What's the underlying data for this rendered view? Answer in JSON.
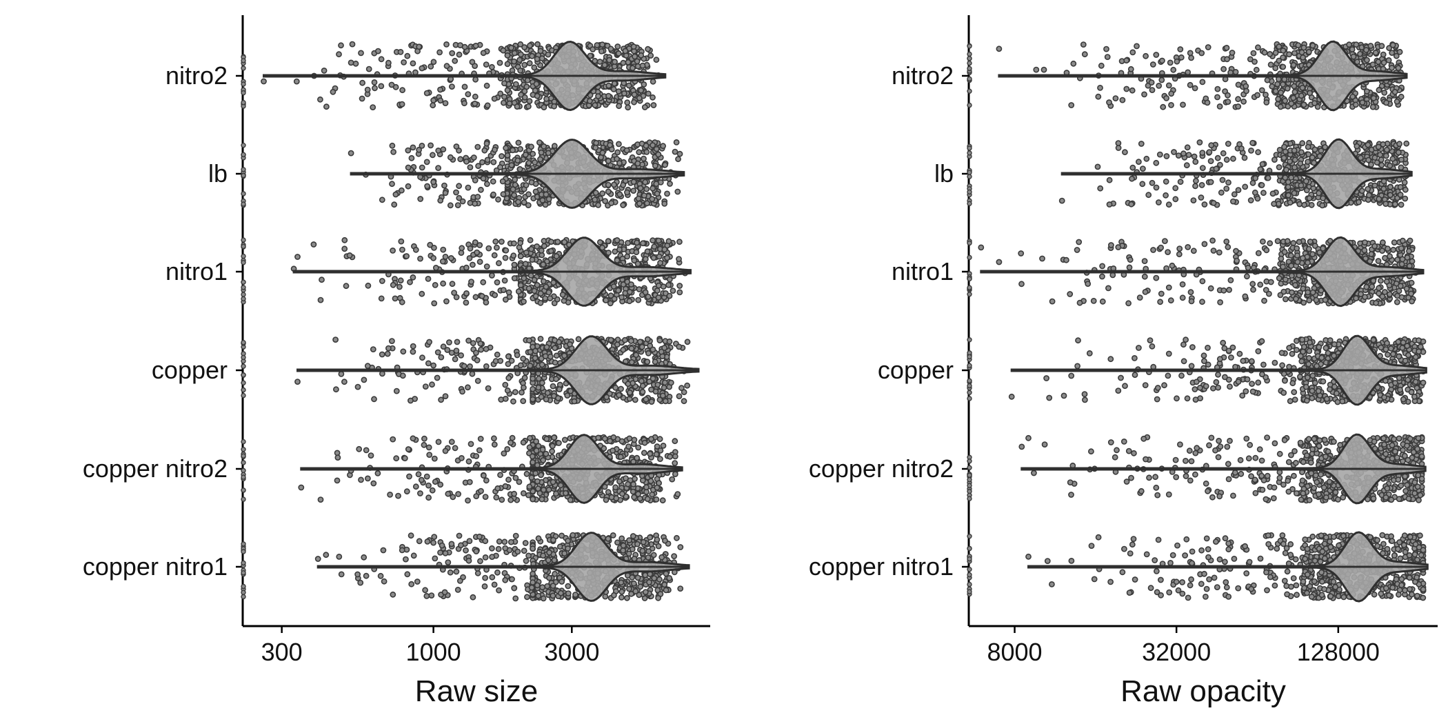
{
  "colors": {
    "violin_fill": "#a6a6a6",
    "violin_stroke": "#2f2f2f",
    "point_fill": "#8c8c8c",
    "point_stroke": "#3a3a3a",
    "axis": "#000000"
  },
  "chart_data": [
    {
      "type": "violin-jitter",
      "orientation": "horizontal",
      "xlabel": "Raw size",
      "xscale": "log",
      "xlim": [
        220,
        9000
      ],
      "xticks": [
        {
          "value": 300,
          "label": "300"
        },
        {
          "value": 1000,
          "label": "1000"
        },
        {
          "value": 3000,
          "label": "3000"
        }
      ],
      "categories": [
        "nitro2",
        "lb",
        "nitro1",
        "copper",
        "copper nitro2",
        "copper nitro1"
      ],
      "groups": [
        {
          "name": "nitro2",
          "min": 260,
          "max": 6300,
          "median": 2950,
          "body_low": 1800,
          "body_high": 6000,
          "outliers": [
            260,
            420,
            480,
            520,
            640,
            700,
            850,
            950,
            1100
          ]
        },
        {
          "name": "lb",
          "min": 520,
          "max": 7300,
          "median": 3000,
          "body_low": 1800,
          "body_high": 7100,
          "outliers": [
            520,
            850,
            950,
            1000,
            1100,
            1200,
            1300
          ]
        },
        {
          "name": "nitro1",
          "min": 330,
          "max": 7700,
          "median": 3300,
          "body_low": 2000,
          "body_high": 7400,
          "outliers": [
            330,
            340,
            700,
            780,
            850,
            1000,
            1100,
            1300
          ]
        },
        {
          "name": "copper",
          "min": 340,
          "max": 8200,
          "median": 3500,
          "body_low": 2200,
          "body_high": 7600,
          "outliers": [
            340,
            620,
            700,
            750,
            850,
            1000,
            1100,
            1200
          ]
        },
        {
          "name": "copper nitro2",
          "min": 350,
          "max": 7200,
          "median": 3300,
          "body_low": 2200,
          "body_high": 7000,
          "outliers": [
            350,
            520,
            850,
            900,
            950,
            1100,
            1250
          ]
        },
        {
          "name": "copper nitro1",
          "min": 400,
          "max": 7600,
          "median": 3500,
          "body_low": 2200,
          "body_high": 7300,
          "outliers": [
            400,
            560,
            780,
            880,
            1000,
            1100,
            1200
          ]
        }
      ]
    },
    {
      "type": "violin-jitter",
      "orientation": "horizontal",
      "xlabel": "Raw opacity",
      "xscale": "log",
      "xlim": [
        5400,
        300000
      ],
      "xticks": [
        {
          "value": 8000,
          "label": "8000"
        },
        {
          "value": 32000,
          "label": "32000"
        },
        {
          "value": 128000,
          "label": "128000"
        }
      ],
      "categories": [
        "nitro2",
        "lb",
        "nitro1",
        "copper",
        "copper nitro2",
        "copper nitro1"
      ],
      "groups": [
        {
          "name": "nitro2",
          "min": 7000,
          "max": 230000,
          "median": 122000,
          "body_low": 70000,
          "body_high": 220000,
          "outliers": [
            7000,
            14000,
            19000,
            22000,
            26000,
            30000,
            36000,
            42000
          ]
        },
        {
          "name": "lb",
          "min": 12000,
          "max": 240000,
          "median": 128000,
          "body_low": 75000,
          "body_high": 230000,
          "outliers": [
            12000,
            26000,
            30000,
            34000,
            38000,
            45000,
            52000
          ]
        },
        {
          "name": "nitro1",
          "min": 6000,
          "max": 265000,
          "median": 130000,
          "body_low": 75000,
          "body_high": 250000,
          "outliers": [
            6000,
            7000,
            28000,
            30000,
            34000,
            40000,
            48000
          ]
        },
        {
          "name": "copper",
          "min": 7800,
          "max": 272000,
          "median": 150000,
          "body_low": 85000,
          "body_high": 265000,
          "outliers": [
            7800,
            13000,
            30000,
            34000,
            38000,
            45000,
            55000
          ]
        },
        {
          "name": "copper nitro2",
          "min": 8500,
          "max": 270000,
          "median": 150000,
          "body_low": 85000,
          "body_high": 262000,
          "outliers": [
            8500,
            9000,
            30000,
            33000,
            40000,
            46000,
            52000
          ]
        },
        {
          "name": "copper nitro1",
          "min": 9000,
          "max": 275000,
          "median": 152000,
          "body_low": 85000,
          "body_high": 265000,
          "outliers": [
            9000,
            11000,
            28000,
            32000,
            36000,
            42000,
            50000
          ]
        }
      ]
    }
  ]
}
